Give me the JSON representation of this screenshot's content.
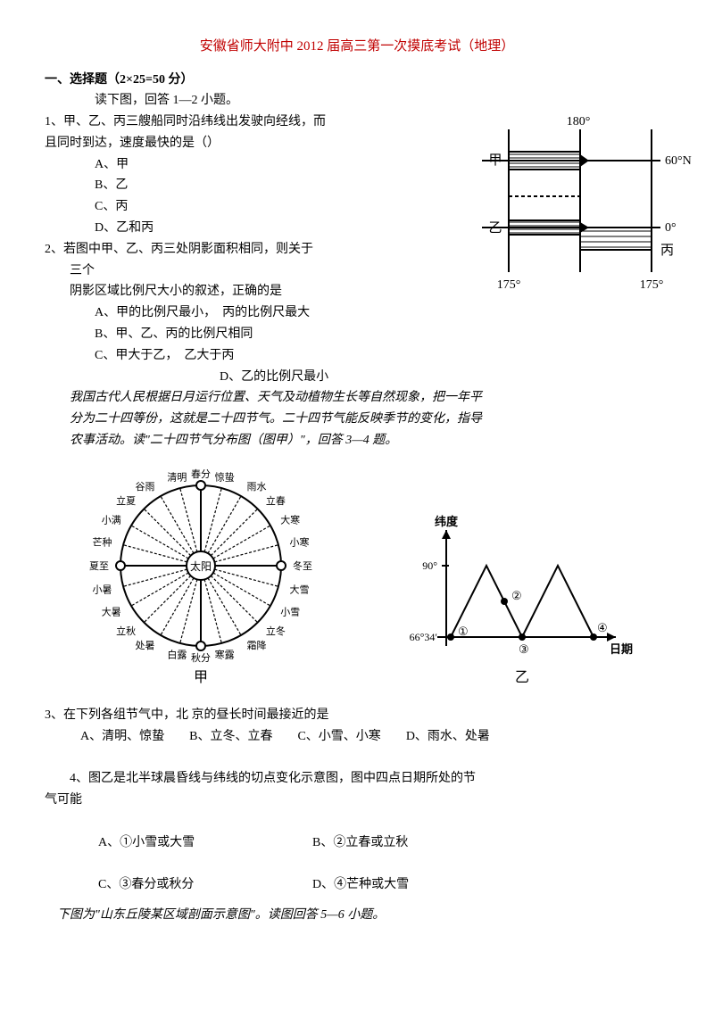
{
  "title": "安徽省师大附中 2012 届高三第一次摸底考试（地理）",
  "section1": {
    "header": "一、选择题（2×25=50 分）",
    "intro": "读下图，回答 1—2 小题。"
  },
  "q1": {
    "stem1": "1、甲、乙、丙三艘船同时沿纬线出发驶向经线，而",
    "stem2": "且同时到达，速度最快的是（）",
    "optA": "A、甲",
    "optB": "B、乙",
    "optC": "C、丙",
    "optD": "D、乙和丙"
  },
  "q2": {
    "stem1": "2、若图中甲、乙、丙三处阴影面积相同，则关于",
    "stem2": "三个",
    "stem3": "阴影区域比例尺大小的叙述，正确的是",
    "optA": "A、甲的比例尺最小，　丙的比例尺最大",
    "optB": "B、甲、乙、丙的比例尺相同",
    "optC": "C、甲大于乙，　乙大于丙",
    "optD": "D、乙的比例尺最小"
  },
  "map1": {
    "lon180": "180°",
    "lat60N": "60°N",
    "lat0": "0°",
    "lon175L": "175°",
    "lon175R": "175°",
    "jia": "甲",
    "yi": "乙",
    "bing": "丙"
  },
  "intro2": {
    "line1": "我国古代人民根据日月运行位置、天气及动植物生长等自然现象，把一年平",
    "line2": "分为二十四等份，这就是二十四节气。二十四节气能反映季节的变化，指导",
    "line3": "农事活动。读\"二十四节气分布图（图甲）\"，回答 3—4 题。"
  },
  "solar_terms": {
    "center": "太阳",
    "label": "甲",
    "terms": [
      "春分",
      "惊蛰",
      "雨水",
      "立春",
      "大寒",
      "小寒",
      "冬至",
      "大雪",
      "小雪",
      "立冬",
      "霜降",
      "寒露",
      "秋分",
      "白露",
      "处暑",
      "立秋",
      "大暑",
      "小暑",
      "夏至",
      "芒种",
      "小满",
      "立夏",
      "谷雨",
      "清明"
    ]
  },
  "chart_yi": {
    "ylabel": "纬度",
    "xlabel": "日期",
    "y90": "90°",
    "y6634": "66°34′",
    "p1": "①",
    "p2": "②",
    "p3": "③",
    "p4": "④",
    "label": "乙"
  },
  "q3": {
    "stem": "3、在下列各组节气中，北 京的昼长时间最接近的是",
    "optA": "A、清明、惊蛰",
    "optB": "B、立冬、立春",
    "optC": "C、小雪、小寒",
    "optD": "D、雨水、处暑"
  },
  "q4": {
    "stem1": "4、图乙是北半球晨昏线与纬线的切点变化示意图，图中四点日期所处的节",
    "stem2": "气可能",
    "optA": "A、①小雪或大雪",
    "optB": "B、②立春或立秋",
    "optC": "C、③春分或秋分",
    "optD": "D、④芒种或大雪"
  },
  "intro3": "下图为\"山东丘陵某区域剖面示意图\"。读图回答 5—6 小题。"
}
